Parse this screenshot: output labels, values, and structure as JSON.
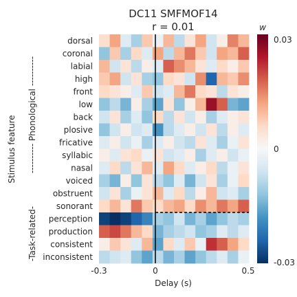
{
  "chart_data": {
    "type": "heatmap",
    "title": "DC11 SMFMOF14",
    "subtitle": "r = 0.01",
    "xlabel": "Delay (s)",
    "ylabel": "Stimulus feature",
    "xlim": [
      -0.3,
      0.5
    ],
    "x_ticks": [
      "-0.3",
      "0",
      "0.5"
    ],
    "zero_marker": "solid vertical line at delay 0",
    "divider": "dashed line between sonorant and perception",
    "group_labels": [
      {
        "text": "---------- Phonological ----------",
        "rows": "dorsal–sonorant"
      },
      {
        "text": "-Task-related-",
        "rows": "perception–inconsistent"
      }
    ],
    "rows": [
      "dorsal",
      "coronal",
      "labial",
      "high",
      "front",
      "low",
      "back",
      "plosive",
      "fricative",
      "syllabic",
      "nasal",
      "voiced",
      "obstruent",
      "sonorant",
      "perception",
      "production",
      "consistent",
      "inconsistent"
    ],
    "colorbar": {
      "label": "w",
      "ticks": [
        "0.03",
        "0",
        "-0.03"
      ],
      "range": [
        -0.03,
        0.03
      ],
      "colormap": "RdBu_r"
    },
    "grid": false,
    "values": [
      [
        0.005,
        0.012,
        -0.004,
        -0.01,
        0.008,
        -0.002,
        0.01,
        -0.008,
        0.004,
        0.012,
        -0.006,
        0.002,
        0.015,
        0.01
      ],
      [
        -0.012,
        0.008,
        -0.01,
        0.006,
        -0.004,
        0.012,
        -0.008,
        0.01,
        0.016,
        0.008,
        -0.006,
        0.012,
        0.01,
        0.018
      ],
      [
        0.01,
        -0.006,
        0.004,
        -0.008,
        0.002,
        -0.004,
        0.018,
        0.014,
        0.01,
        0.004,
        -0.004,
        0.006,
        0.002,
        0.008
      ],
      [
        0.008,
        0.012,
        -0.006,
        0.004,
        -0.01,
        -0.012,
        0.006,
        0.004,
        -0.006,
        0.014,
        -0.024,
        0.01,
        0.008,
        0.014
      ],
      [
        0.006,
        0.004,
        0.002,
        -0.004,
        0.008,
        -0.006,
        -0.004,
        0.01,
        0.016,
        0.006,
        0.004,
        -0.008,
        0.004,
        0.002
      ],
      [
        -0.012,
        -0.008,
        -0.014,
        0.002,
        -0.01,
        -0.016,
        0.004,
        -0.012,
        0.002,
        0.01,
        0.026,
        0.018,
        -0.014,
        -0.016
      ],
      [
        -0.006,
        0.004,
        -0.01,
        -0.004,
        -0.012,
        0.006,
        -0.008,
        0.004,
        -0.006,
        0.002,
        -0.01,
        -0.004,
        0.002,
        0.004
      ],
      [
        -0.012,
        -0.006,
        0.002,
        -0.006,
        -0.004,
        -0.018,
        -0.008,
        -0.004,
        0.002,
        -0.006,
        0.004,
        -0.008,
        0.002,
        -0.004
      ],
      [
        -0.004,
        0.002,
        -0.006,
        -0.002,
        -0.01,
        -0.004,
        0.002,
        -0.006,
        -0.008,
        0.004,
        -0.004,
        -0.01,
        -0.002,
        0.004
      ],
      [
        0.002,
        -0.004,
        0.004,
        0.006,
        -0.002,
        0.004,
        -0.006,
        -0.004,
        0.002,
        -0.01,
        -0.004,
        0.002,
        -0.006,
        -0.002
      ],
      [
        -0.004,
        0.006,
        -0.008,
        0.004,
        0.01,
        -0.004,
        0.012,
        0.006,
        -0.004,
        0.002,
        0.006,
        -0.008,
        -0.002,
        0.004
      ],
      [
        -0.01,
        -0.014,
        0.002,
        -0.012,
        0.004,
        -0.008,
        -0.012,
        -0.004,
        -0.014,
        -0.006,
        0.004,
        -0.01,
        -0.002,
        0.006
      ],
      [
        -0.006,
        0.004,
        -0.01,
        -0.002,
        0.004,
        0.01,
        -0.004,
        0.006,
        -0.008,
        0.002,
        0.01,
        -0.006,
        -0.004,
        -0.01
      ],
      [
        0.006,
        0.01,
        0.004,
        0.016,
        0.008,
        0.006,
        0.01,
        0.012,
        0.006,
        0.014,
        0.01,
        0.016,
        0.012,
        0.018
      ],
      [
        -0.028,
        -0.03,
        -0.028,
        -0.024,
        -0.02,
        -0.01,
        -0.012,
        -0.006,
        -0.014,
        -0.01,
        -0.016,
        -0.012,
        -0.008,
        -0.01
      ],
      [
        0.018,
        0.02,
        0.016,
        0.01,
        0.006,
        -0.014,
        -0.01,
        -0.008,
        -0.006,
        -0.012,
        -0.01,
        -0.004,
        -0.008,
        -0.004
      ],
      [
        0.002,
        0.008,
        0.004,
        -0.004,
        0.01,
        -0.016,
        0.006,
        -0.004,
        0.008,
        -0.002,
        0.022,
        0.018,
        0.012,
        0.006
      ],
      [
        -0.008,
        -0.006,
        -0.004,
        -0.012,
        -0.016,
        -0.008,
        -0.014,
        -0.01,
        -0.016,
        -0.012,
        -0.008,
        -0.004,
        -0.01,
        -0.002
      ]
    ]
  }
}
